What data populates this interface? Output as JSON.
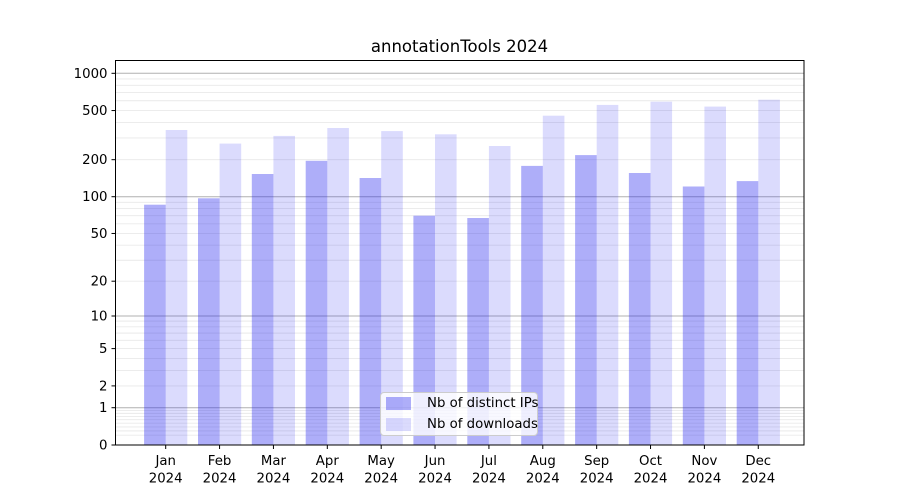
{
  "figure": {
    "background": "#ffffff",
    "plot_border_color": "#000000",
    "grid_major_color": "#b0b0b0",
    "grid_minor_color": "#e9e9e9",
    "tick_color": "#000000",
    "text_color": "#000000"
  },
  "chart_data": {
    "type": "bar",
    "title": "annotationTools 2024",
    "categories": [
      "Jan 2024",
      "Feb 2024",
      "Mar 2024",
      "Apr 2024",
      "May 2024",
      "Jun 2024",
      "Jul 2024",
      "Aug 2024",
      "Sep 2024",
      "Oct 2024",
      "Nov 2024",
      "Dec 2024"
    ],
    "series": [
      {
        "name": "Nb of distinct IPs",
        "color": "#2222f05e",
        "color_flat": "#adadf9",
        "values": [
          86,
          97,
          153,
          196,
          142,
          70,
          67,
          178,
          218,
          156,
          121,
          134
        ]
      },
      {
        "name": "Nb of downloads",
        "color": "#2222f02a",
        "color_flat": "#dadafc",
        "values": [
          348,
          270,
          312,
          361,
          341,
          321,
          258,
          454,
          555,
          590,
          538,
          612
        ]
      }
    ],
    "xlabel": "",
    "ylabel": "",
    "yscale": "log1p",
    "ytick_labels": [
      "0",
      "1",
      "2",
      "5",
      "10",
      "20",
      "50",
      "100",
      "200",
      "500",
      "1000"
    ],
    "ytick_major": [
      1,
      10,
      100,
      1000
    ],
    "ylim": [
      0,
      1280
    ],
    "grid": "horizontal, log major + minor",
    "legend_position": "lower center"
  }
}
